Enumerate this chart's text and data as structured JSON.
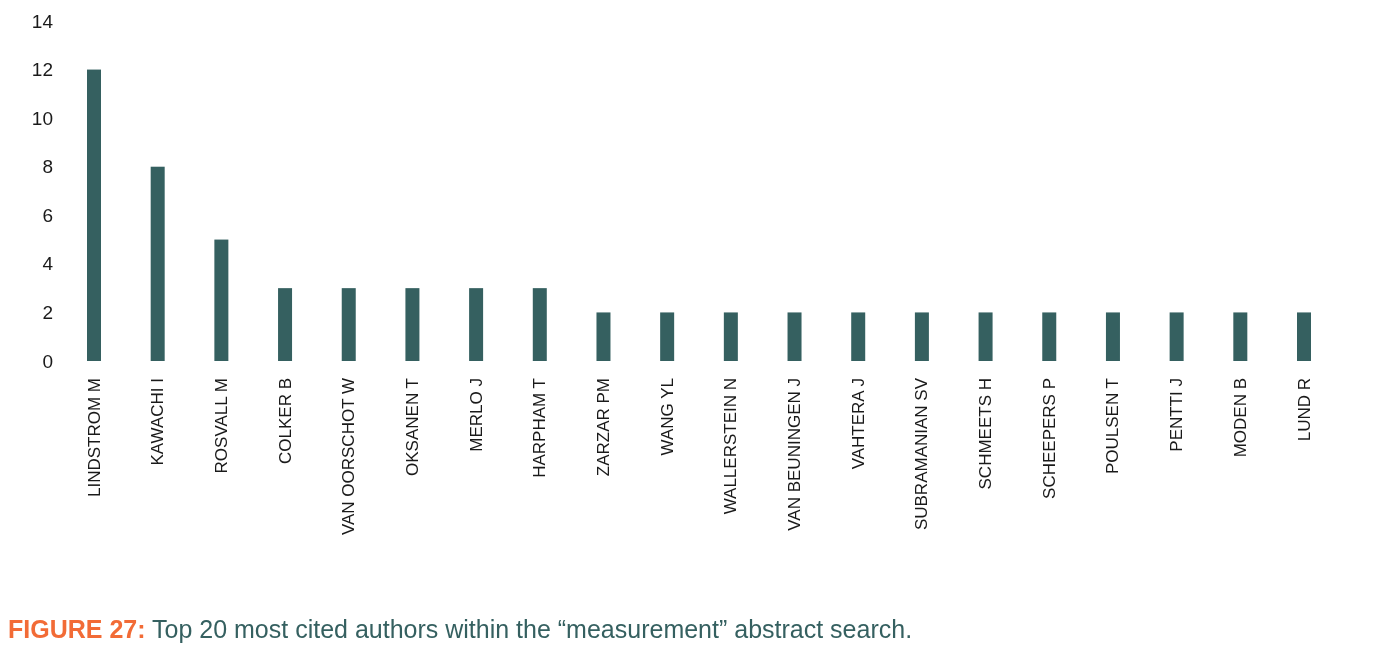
{
  "chart_data": {
    "type": "bar",
    "title": "FIGURE 27: Top 20 most cited authors within the “measurement” abstract search.",
    "categories": [
      "LINDSTROM M",
      "KAWACHI I",
      "ROSVALL M",
      "COLKER B",
      "VAN OORSCHOT W",
      "OKSANEN T",
      "MERLO J",
      "HARPHAM T",
      "ZARZAR PM",
      "WANG YL",
      "WALLERSTEIN N",
      "VAN BEUNINGEN J",
      "VAHTERA J",
      "SUBRAMANIAN SV",
      "SCHMEETS H",
      "SCHEEPERS P",
      "POULSEN T",
      "PENTTI J",
      "MODEN B",
      "LUND R"
    ],
    "values": [
      12,
      8,
      5,
      3,
      3,
      3,
      3,
      3,
      2,
      2,
      2,
      2,
      2,
      2,
      2,
      2,
      2,
      2,
      2,
      2
    ],
    "color": "#356060",
    "ylim": [
      0,
      14
    ],
    "yticks": [
      0,
      2,
      4,
      6,
      8,
      10,
      12,
      14
    ]
  }
}
